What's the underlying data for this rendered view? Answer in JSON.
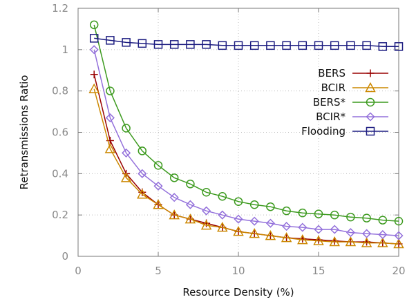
{
  "chart_data": {
    "type": "line",
    "xlabel": "Resource Density (%)",
    "ylabel": "Retransmissions Ratio",
    "xlim": [
      0,
      20
    ],
    "ylim": [
      0,
      1.2
    ],
    "xticks": [
      0,
      5,
      10,
      15,
      20
    ],
    "yticks": [
      0,
      0.2,
      0.4,
      0.6,
      0.8,
      1,
      1.2
    ],
    "xtick_labels": [
      "0",
      "5",
      "10",
      "15",
      "20"
    ],
    "ytick_labels": [
      "0",
      "0.2",
      "0.4",
      "0.6",
      "0.8",
      "1",
      "1.2"
    ],
    "grid": "dotted",
    "legend_position": "right",
    "x": [
      1,
      2,
      3,
      4,
      5,
      6,
      7,
      8,
      9,
      10,
      11,
      12,
      13,
      14,
      15,
      16,
      17,
      18,
      19,
      20
    ],
    "series": [
      {
        "name": "BERS",
        "color": "#990000",
        "marker": "plus",
        "values": [
          0.88,
          0.56,
          0.4,
          0.31,
          0.25,
          0.2,
          0.18,
          0.16,
          0.14,
          0.12,
          0.11,
          0.1,
          0.09,
          0.085,
          0.08,
          0.075,
          0.07,
          0.07,
          0.065,
          0.06
        ]
      },
      {
        "name": "BCIR",
        "color": "#cc8800",
        "marker": "triangle",
        "values": [
          0.81,
          0.52,
          0.38,
          0.3,
          0.25,
          0.2,
          0.18,
          0.15,
          0.14,
          0.12,
          0.11,
          0.1,
          0.09,
          0.08,
          0.075,
          0.07,
          0.07,
          0.065,
          0.065,
          0.06
        ]
      },
      {
        "name": "BERS*",
        "color": "#3c9a1e",
        "marker": "circle",
        "values": [
          1.12,
          0.8,
          0.62,
          0.51,
          0.44,
          0.38,
          0.35,
          0.31,
          0.29,
          0.265,
          0.25,
          0.24,
          0.22,
          0.21,
          0.205,
          0.2,
          0.19,
          0.185,
          0.175,
          0.17
        ]
      },
      {
        "name": "BCIR*",
        "color": "#9370db",
        "marker": "diamond",
        "values": [
          1.0,
          0.67,
          0.5,
          0.4,
          0.34,
          0.285,
          0.25,
          0.22,
          0.2,
          0.18,
          0.17,
          0.16,
          0.145,
          0.14,
          0.13,
          0.13,
          0.115,
          0.11,
          0.105,
          0.1
        ]
      },
      {
        "name": "Flooding",
        "color": "#1c1c80",
        "marker": "square",
        "values": [
          1.055,
          1.045,
          1.035,
          1.03,
          1.025,
          1.025,
          1.025,
          1.025,
          1.02,
          1.02,
          1.02,
          1.02,
          1.02,
          1.02,
          1.02,
          1.02,
          1.02,
          1.02,
          1.015,
          1.015
        ]
      }
    ]
  }
}
